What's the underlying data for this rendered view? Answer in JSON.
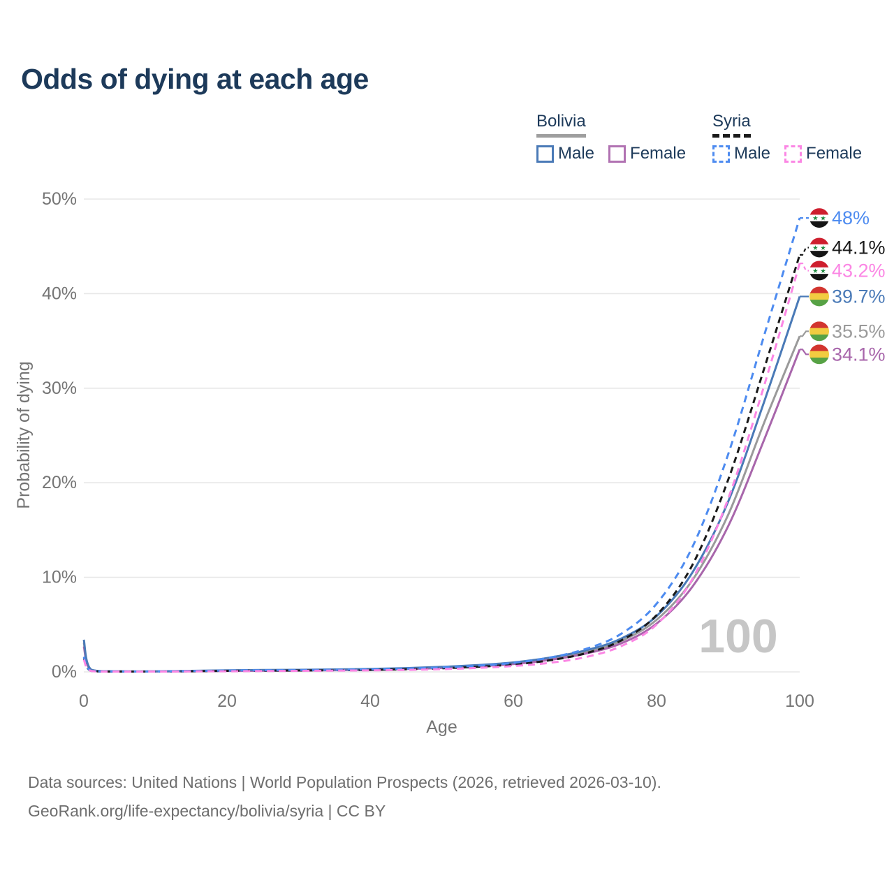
{
  "title": "Odds of dying at each age",
  "watermark": "100",
  "legend": {
    "groups": [
      {
        "label": "Bolivia",
        "line_style": "solid",
        "underline_color": "#9e9e9e",
        "items": [
          {
            "label": "Male",
            "color": "#4a7ab7",
            "dashed": false
          },
          {
            "label": "Female",
            "color": "#b172b2",
            "dashed": false
          }
        ]
      },
      {
        "label": "Syria",
        "line_style": "dashed",
        "underline_color": "#1a1a1a",
        "items": [
          {
            "label": "Male",
            "color": "#4d8bf0",
            "dashed": true
          },
          {
            "label": "Female",
            "color": "#fb86e4",
            "dashed": true
          }
        ]
      }
    ]
  },
  "footer": {
    "line1": "Data sources: United Nations | World Population Prospects (2026, retrieved 2026-03-10).",
    "line2": "GeoRank.org/life-expectancy/bolivia/syria | CC BY"
  },
  "chart_data": {
    "type": "line",
    "title": "Odds of dying at each age",
    "xlabel": "Age",
    "ylabel": "Probability of dying",
    "xlim": [
      0,
      100
    ],
    "ylim": [
      0,
      50
    ],
    "x_ticks": [
      0,
      20,
      40,
      60,
      80,
      100
    ],
    "y_ticks": [
      "0%",
      "10%",
      "20%",
      "30%",
      "40%",
      "50%"
    ],
    "grid": "horizontal",
    "legend_position": "top-right",
    "x": [
      0,
      1,
      5,
      10,
      15,
      20,
      25,
      30,
      35,
      40,
      45,
      50,
      55,
      60,
      65,
      70,
      75,
      80,
      85,
      90,
      95,
      100
    ],
    "series": [
      {
        "name": "Bolivia Both",
        "country": "Bolivia",
        "sex": "both",
        "color": "#9a9a9a",
        "dash": null,
        "end_label": "35.5%",
        "values": [
          3.1,
          0.22,
          0.06,
          0.05,
          0.09,
          0.14,
          0.16,
          0.18,
          0.22,
          0.27,
          0.35,
          0.47,
          0.65,
          0.92,
          1.38,
          2.08,
          3.25,
          5.5,
          9.7,
          16.6,
          26.3,
          35.5
        ]
      },
      {
        "name": "Bolivia Female",
        "country": "Bolivia",
        "sex": "female",
        "color": "#a866ab",
        "dash": null,
        "end_label": "34.1%",
        "values": [
          2.7,
          0.2,
          0.05,
          0.045,
          0.07,
          0.1,
          0.12,
          0.15,
          0.18,
          0.23,
          0.3,
          0.41,
          0.58,
          0.83,
          1.26,
          1.92,
          3.0,
          5.1,
          9.0,
          15.4,
          24.5,
          34.1
        ]
      },
      {
        "name": "Bolivia Male",
        "country": "Bolivia",
        "sex": "male",
        "color": "#4a7ab7",
        "dash": null,
        "end_label": "39.7%",
        "values": [
          3.4,
          0.25,
          0.07,
          0.06,
          0.11,
          0.17,
          0.2,
          0.22,
          0.26,
          0.31,
          0.4,
          0.53,
          0.72,
          1.0,
          1.5,
          2.25,
          3.5,
          5.9,
          10.5,
          18.0,
          28.5,
          39.7
        ]
      },
      {
        "name": "Syria Both",
        "country": "Syria",
        "sex": "both",
        "color": "#1a1a1a",
        "dash": [
          9,
          6
        ],
        "end_label": "44.1%",
        "values": [
          1.45,
          0.11,
          0.04,
          0.04,
          0.07,
          0.11,
          0.13,
          0.15,
          0.17,
          0.21,
          0.28,
          0.38,
          0.54,
          0.78,
          1.22,
          1.95,
          3.3,
          6.0,
          11.3,
          20.3,
          32.0,
          44.1
        ]
      },
      {
        "name": "Syria Male",
        "country": "Syria",
        "sex": "male",
        "color": "#4d8bf0",
        "dash": [
          10,
          7
        ],
        "end_label": "48%",
        "values": [
          1.6,
          0.12,
          0.05,
          0.05,
          0.09,
          0.14,
          0.17,
          0.19,
          0.22,
          0.27,
          0.35,
          0.47,
          0.66,
          0.95,
          1.5,
          2.4,
          4.0,
          7.2,
          13.2,
          23.0,
          35.5,
          48.0
        ]
      },
      {
        "name": "Syria Female",
        "country": "Syria",
        "sex": "female",
        "color": "#fb86e4",
        "dash": [
          10,
          7
        ],
        "end_label": "43.2%",
        "values": [
          1.3,
          0.1,
          0.035,
          0.035,
          0.05,
          0.07,
          0.09,
          0.11,
          0.13,
          0.16,
          0.21,
          0.29,
          0.42,
          0.62,
          0.95,
          1.55,
          2.7,
          5.0,
          9.8,
          18.3,
          30.2,
          43.2
        ]
      }
    ],
    "flags": {
      "Syria": {
        "name": "syria-flag",
        "bands": [
          "#ce1f2e",
          "#ffffff",
          "#151515"
        ],
        "stars": "★ ★",
        "star_color": "#1d8a3e"
      },
      "Bolivia": {
        "name": "bolivia-flag",
        "bands": [
          "#d2352f",
          "#f2cc41",
          "#57a245"
        ]
      }
    },
    "colors": {
      "grid": "#e7e7e7",
      "tick_text": "#757575",
      "axis_title": "#757575",
      "title_text": "#1d3a5a",
      "watermark": "#c6c6c6",
      "footer_text": "#6e6e6e"
    }
  }
}
